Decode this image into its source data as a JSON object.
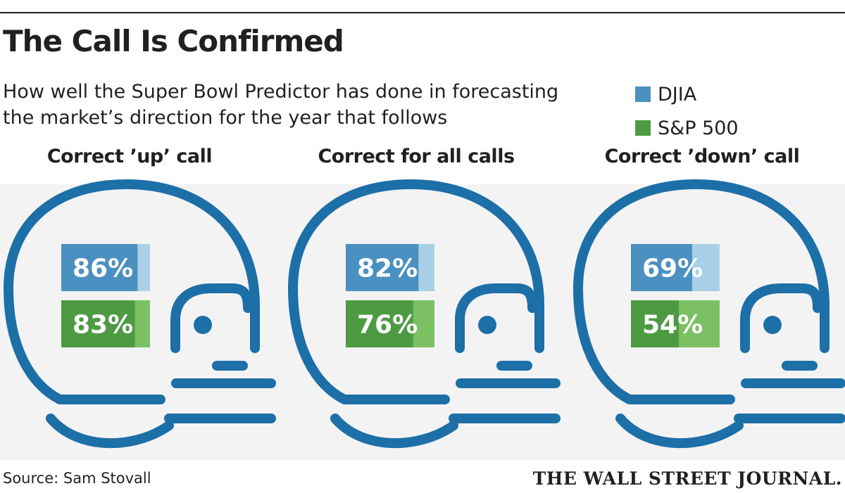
{
  "title": "The Call Is Confirmed",
  "subtitle_lines": [
    "How well the Super Bowl Predictor has done in forecasting",
    "the market’s direction for the year that follows"
  ],
  "legend": [
    {
      "label": "DJIA",
      "color": "#4a90c0"
    },
    {
      "label": "S&P 500",
      "color": "#4e9a43"
    }
  ],
  "colors": {
    "helmet": "#1d6fa8",
    "djia": "#4a90c0",
    "djia_remainder": "#a9d0e6",
    "sp500": "#4e9a43",
    "sp500_remainder": "#7cc064",
    "band": "#f3f3f3"
  },
  "chart_data": {
    "type": "bar",
    "title": "The Call Is Confirmed",
    "categories": [
      "Correct ’up’ call",
      "Correct for all calls",
      "Correct ’down’ call"
    ],
    "series": [
      {
        "name": "DJIA",
        "values": [
          86,
          82,
          69
        ],
        "labels": [
          "86%",
          "82%",
          "69%"
        ]
      },
      {
        "name": "S&P 500",
        "values": [
          83,
          76,
          54
        ],
        "labels": [
          "83%",
          "76%",
          "54%"
        ]
      }
    ],
    "unit": "%",
    "ylim": [
      0,
      100
    ]
  },
  "source": "Source: Sam Stovall",
  "brand": "THE WALL STREET JOURNAL."
}
